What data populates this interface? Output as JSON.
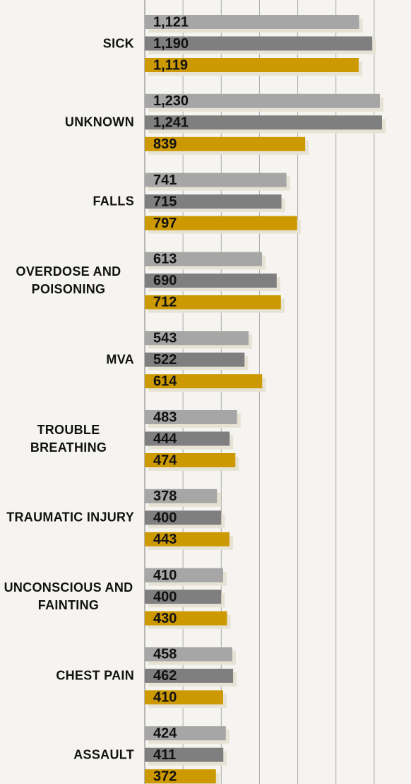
{
  "chart_data": {
    "type": "bar",
    "orientation": "horizontal",
    "categories": [
      "SICK",
      "UNKNOWN",
      "FALLS",
      "OVERDOSE AND POISONING",
      "MVA",
      "TROUBLE BREATHING",
      "TRAUMATIC INJURY",
      "UNCONSCIOUS AND FAINTING",
      "CHEST PAIN",
      "ASSAULT"
    ],
    "series": [
      {
        "color": "#a6a6a6",
        "values": [
          1121,
          1230,
          741,
          613,
          543,
          483,
          378,
          410,
          458,
          424
        ],
        "value_labels": [
          "1,121",
          "1,230",
          "741",
          "613",
          "543",
          "483",
          "378",
          "410",
          "458",
          "424"
        ]
      },
      {
        "color": "#7f7f7f",
        "values": [
          1190,
          1241,
          715,
          690,
          522,
          444,
          400,
          400,
          462,
          411
        ],
        "value_labels": [
          "1,190",
          "1,241",
          "715",
          "690",
          "522",
          "444",
          "400",
          "400",
          "462",
          "411"
        ]
      },
      {
        "color": "#cc9900",
        "values": [
          1119,
          839,
          797,
          712,
          614,
          474,
          443,
          430,
          410,
          372
        ],
        "value_labels": [
          "1,119",
          "839",
          "797",
          "712",
          "614",
          "474",
          "443",
          "430",
          "410",
          "372"
        ]
      }
    ],
    "xlim": [
      0,
      1400
    ],
    "xticks": [
      0,
      200,
      400,
      600,
      800,
      1000,
      1200
    ],
    "grid": true
  }
}
